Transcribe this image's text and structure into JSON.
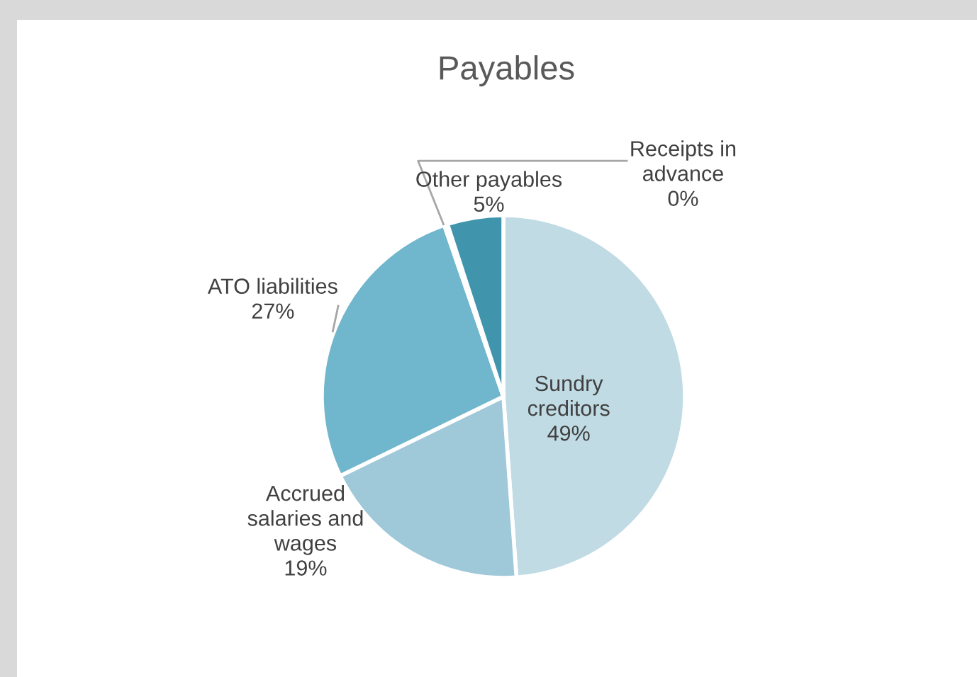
{
  "chart_data": {
    "type": "pie",
    "title": "Payables",
    "categories": [
      "Sundry creditors",
      "Accrued salaries and wages",
      "ATO liabilities",
      "Receipts in advance",
      "Other payables"
    ],
    "values": [
      49,
      19,
      27,
      0.3,
      5
    ],
    "value_labels": [
      "49%",
      "19%",
      "27%",
      "0%",
      "5%"
    ],
    "colors": [
      "#c0dbe4",
      "#9fc8d9",
      "#70b6cd",
      "#5aa8c2",
      "#4095ad"
    ],
    "legend": false
  }
}
